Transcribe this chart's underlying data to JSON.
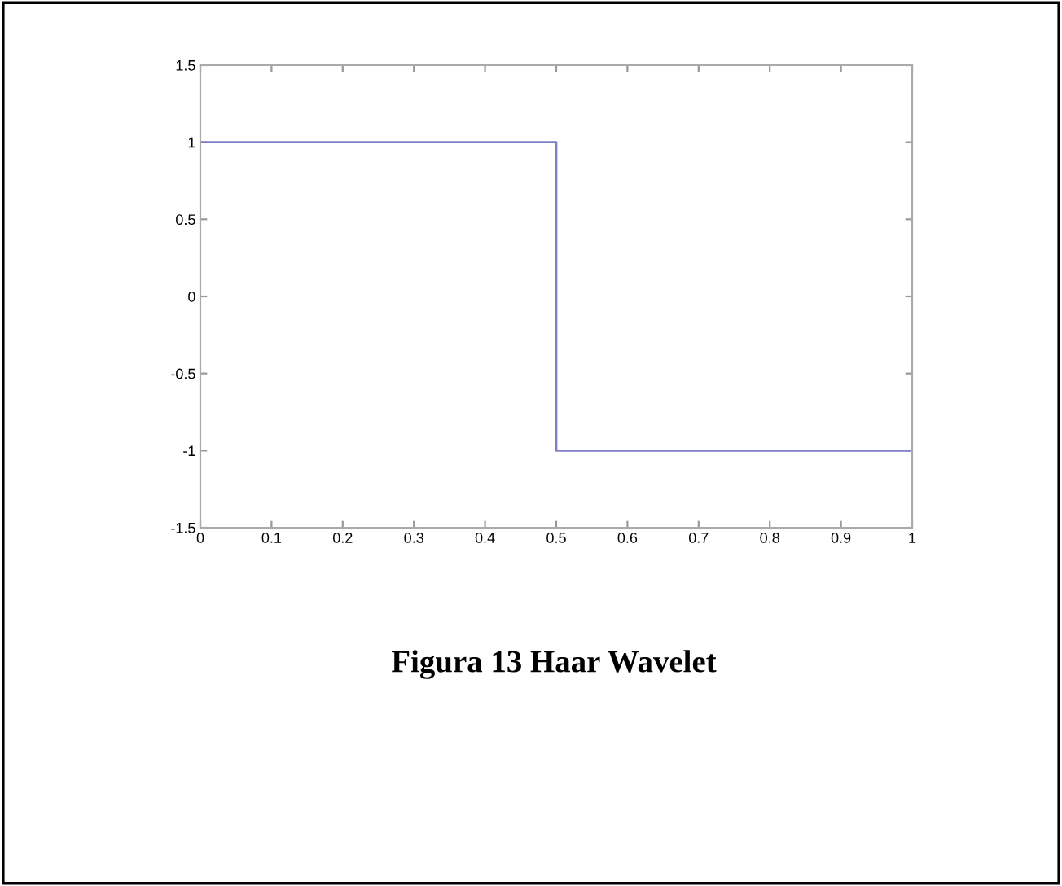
{
  "chart_data": {
    "type": "line",
    "x": [
      0,
      0.5,
      0.5,
      1,
      1
    ],
    "series": [
      {
        "color": "#8080c8",
        "values": [
          1,
          1,
          -1,
          -1,
          -0.5
        ]
      }
    ],
    "xlim": [
      0,
      1
    ],
    "xticks": [
      0,
      0.1,
      0.2,
      0.3,
      0.4,
      0.5,
      0.6,
      0.7,
      0.8,
      0.9,
      1
    ],
    "ylim": [
      -1.5,
      1.5
    ],
    "yticks": [
      -1.5,
      -1,
      -0.5,
      0,
      0.5,
      1,
      1.5
    ],
    "grid": false,
    "legend": false,
    "annotations": [
      "Figura 13 Haar Wavelet"
    ]
  }
}
